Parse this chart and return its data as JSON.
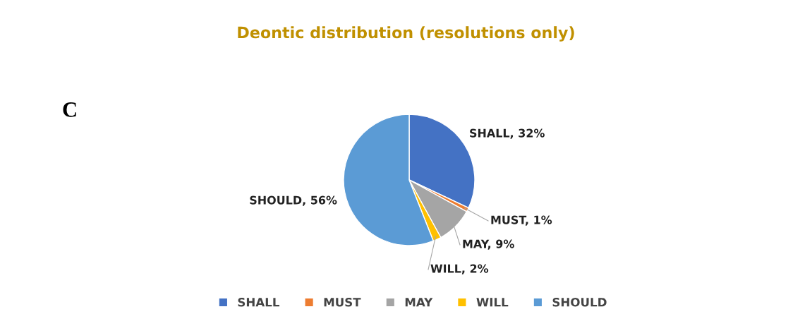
{
  "chart_data": {
    "type": "pie",
    "title": "Deontic distribution (resolutions only)",
    "annotations": [
      "C"
    ],
    "categories": [
      "SHALL",
      "MUST",
      "MAY",
      "WILL",
      "SHOULD"
    ],
    "values": [
      32,
      1,
      9,
      2,
      56
    ],
    "value_labels": [
      "SHALL, 32%",
      "MUST, 1%",
      "MAY, 9%",
      "WILL, 2%",
      "SHOULD, 56%"
    ],
    "colors": [
      "#4472c4",
      "#ed7d31",
      "#a5a5a5",
      "#ffc000",
      "#5b9bd5"
    ],
    "legend": "bottom"
  }
}
